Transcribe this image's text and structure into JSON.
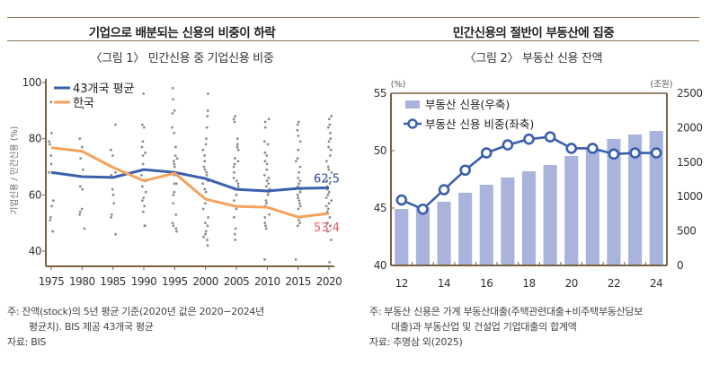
{
  "left": {
    "headline": "기업으로 배분되는 신용의 비중이 하락",
    "figure_title": "〈그림 1〉 민간신용 중 기업신용 비중",
    "notes": [
      "주: 잔액(stock)의 5년 평균 기준(2020년 값은 2020−2024년",
      "평균치). BIS 제공 43개국 평균",
      "자료: BIS"
    ]
  },
  "right": {
    "headline": "민간신용의 절반이 부동산에 집중",
    "figure_title": "〈그림 2〉 부동산 신용 잔액",
    "notes": [
      "주: 부동산 신용은 가계 부동산대출(주택관련대출+비주택부동산담보",
      "대출)과 부동산업 및 건설업 기업대출의 합계액",
      "자료: 추명삼 외(2025)"
    ]
  },
  "chart_data": [
    {
      "type": "line",
      "title": "〈그림 1〉 민간신용 중 기업신용 비중",
      "xlabel": "",
      "ylabel": "기업신용 / 민간신용 (%)",
      "x": [
        "1975",
        "1980",
        "1985",
        "1990",
        "1995",
        "2000",
        "2005",
        "2010",
        "2015",
        "2020"
      ],
      "ylim": [
        35,
        100
      ],
      "yticks": [
        "40",
        "60",
        "80",
        "100"
      ],
      "grid": false,
      "legend_position": "top-left",
      "series": [
        {
          "name": "43개국 평균",
          "color": "#3a5fad",
          "values": [
            68.0,
            66.5,
            66.2,
            69.0,
            68.0,
            65.8,
            62.0,
            61.4,
            62.3,
            62.5
          ]
        },
        {
          "name": "한국",
          "color": "#f5a25d",
          "values": [
            76.8,
            75.5,
            69.8,
            65.0,
            67.7,
            58.5,
            55.9,
            55.6,
            52.1,
            53.4
          ]
        }
      ],
      "annotations": [
        {
          "text": "62.5",
          "series": "43개국 평균",
          "x": "2020",
          "color": "#2f4f9a"
        },
        {
          "text": "53.4",
          "series": "한국",
          "x": "2020",
          "color": "#ee5b5b"
        }
      ],
      "scatter_background": {
        "description": "individual country values (grey dots)",
        "color": "#8c8c8c",
        "points": {
          "1975": [
            93,
            82,
            79,
            78,
            74,
            71,
            68,
            58,
            56,
            52,
            51,
            47
          ],
          "1980": [
            91,
            80,
            77,
            73,
            69,
            63,
            62,
            55,
            54,
            53,
            48
          ],
          "1985": [
            85,
            76,
            74,
            68,
            67,
            62,
            60,
            57,
            53,
            52,
            46
          ],
          "1990": [
            96,
            85,
            84,
            79,
            77,
            75,
            74,
            71,
            67,
            65,
            63,
            61,
            59,
            58,
            56,
            54,
            49,
            49
          ],
          "1995": [
            98,
            94,
            90,
            89,
            84,
            82,
            77,
            74,
            73,
            72,
            71,
            70,
            67,
            64,
            64,
            61,
            60,
            57,
            53,
            50,
            49,
            48,
            47
          ],
          "2000": [
            96,
            90,
            88,
            84,
            80,
            78,
            76,
            74,
            72,
            70,
            69,
            68,
            67,
            66,
            65,
            64,
            62,
            61,
            57,
            55,
            52,
            50,
            49,
            47,
            46,
            45,
            44,
            42
          ],
          "2005": [
            88,
            87,
            86,
            80,
            78,
            77,
            76,
            73,
            72,
            71,
            70,
            68,
            66,
            65,
            64,
            63,
            62,
            60,
            58,
            56,
            55,
            52,
            48,
            46,
            44
          ],
          "2010": [
            87,
            86,
            84,
            79,
            78,
            75,
            74,
            72,
            71,
            69,
            67,
            66,
            65,
            64,
            63,
            62,
            61,
            60,
            58,
            57,
            56,
            53,
            52,
            50,
            49,
            48,
            37
          ],
          "2015": [
            86,
            85,
            83,
            81,
            79,
            76,
            73,
            72,
            70,
            68,
            66,
            65,
            64,
            63,
            62,
            61,
            60,
            59,
            58,
            57,
            56,
            55,
            52,
            51,
            50,
            49,
            37
          ],
          "2020": [
            88,
            87,
            85,
            84,
            82,
            80,
            79,
            77,
            76,
            74,
            72,
            70,
            69,
            68,
            66,
            65,
            64,
            63,
            62,
            61,
            60,
            59,
            58,
            57,
            56,
            55,
            54,
            52,
            50,
            49,
            47,
            44,
            36
          ]
        }
      }
    },
    {
      "type": "bar",
      "title": "〈그림 2〉 부동산 신용 잔액",
      "xlabel": "",
      "categories": [
        "12",
        "13",
        "14",
        "15",
        "16",
        "17",
        "18",
        "19",
        "20",
        "21",
        "22",
        "23",
        "24"
      ],
      "xticks": [
        "12",
        "14",
        "16",
        "18",
        "20",
        "22",
        "24"
      ],
      "left_axis": {
        "unit": "(%)",
        "ylim": [
          40,
          55
        ],
        "ticks": [
          "40",
          "45",
          "50",
          "55"
        ]
      },
      "right_axis": {
        "unit": "(조원)",
        "ylim": [
          0,
          2500
        ],
        "ticks": [
          "0",
          "500",
          "1000",
          "1500",
          "2000",
          "2500"
        ]
      },
      "grid": false,
      "legend_position": "top-left",
      "series": [
        {
          "name": "부동산 신용(우축)",
          "kind": "bar",
          "axis": "right",
          "color": "#a9b3dc",
          "values": [
            820,
            846,
            925,
            1055,
            1172,
            1276,
            1367,
            1458,
            1588,
            1680,
            1836,
            1901,
            1953
          ]
        },
        {
          "name": "부동산 신용 비중(좌축)",
          "kind": "line-marker",
          "axis": "left",
          "color": "#3a5fad",
          "values": [
            45.7,
            44.9,
            46.6,
            48.3,
            49.8,
            50.5,
            51.0,
            51.2,
            50.2,
            50.2,
            49.7,
            49.8,
            49.8
          ]
        }
      ]
    }
  ]
}
